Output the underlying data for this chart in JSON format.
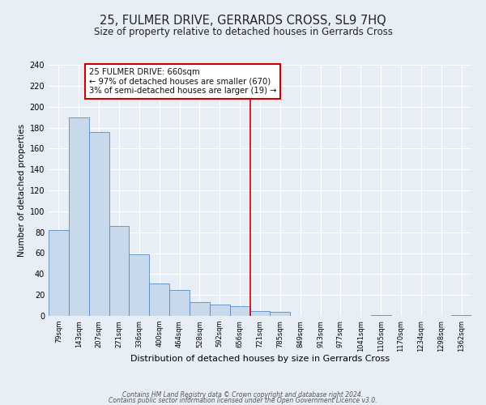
{
  "title": "25, FULMER DRIVE, GERRARDS CROSS, SL9 7HQ",
  "subtitle": "Size of property relative to detached houses in Gerrards Cross",
  "xlabel": "Distribution of detached houses by size in Gerrards Cross",
  "ylabel": "Number of detached properties",
  "bar_labels": [
    "79sqm",
    "143sqm",
    "207sqm",
    "271sqm",
    "336sqm",
    "400sqm",
    "464sqm",
    "528sqm",
    "592sqm",
    "656sqm",
    "721sqm",
    "785sqm",
    "849sqm",
    "913sqm",
    "977sqm",
    "1041sqm",
    "1105sqm",
    "1170sqm",
    "1234sqm",
    "1298sqm",
    "1362sqm"
  ],
  "bar_values": [
    82,
    190,
    176,
    86,
    59,
    31,
    25,
    13,
    11,
    9,
    5,
    4,
    0,
    0,
    0,
    0,
    1,
    0,
    0,
    0,
    1
  ],
  "bar_color": "#c9d9ec",
  "bar_edge_color": "#5a8abf",
  "ylim": [
    0,
    240
  ],
  "yticks": [
    0,
    20,
    40,
    60,
    80,
    100,
    120,
    140,
    160,
    180,
    200,
    220,
    240
  ],
  "vline_x_index": 9.5,
  "vline_color": "#cc0000",
  "annotation_text": "25 FULMER DRIVE: 660sqm\n← 97% of detached houses are smaller (670)\n3% of semi-detached houses are larger (19) →",
  "annotation_box_color": "#ffffff",
  "annotation_box_edge_color": "#cc0000",
  "footnote1": "Contains HM Land Registry data © Crown copyright and database right 2024.",
  "footnote2": "Contains public sector information licensed under the Open Government Licence v3.0.",
  "background_color": "#e8eef5",
  "plot_bg_color": "#e8eef5",
  "grid_color": "#ffffff",
  "title_fontsize": 10.5,
  "subtitle_fontsize": 8.5,
  "xlabel_fontsize": 8,
  "ylabel_fontsize": 7.5
}
